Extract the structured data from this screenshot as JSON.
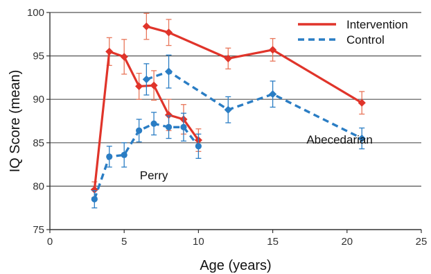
{
  "chart_data": {
    "type": "line",
    "xlabel": "Age (years)",
    "ylabel": "IQ Score (mean)",
    "xlim": [
      0,
      25
    ],
    "ylim": [
      75,
      100
    ],
    "x_ticks": [
      "0",
      "5",
      "10",
      "15",
      "20",
      "25"
    ],
    "y_ticks": [
      "75",
      "80",
      "85",
      "90",
      "95",
      "100"
    ],
    "grid": "horizontal",
    "legend": {
      "placement": "top-right",
      "entries": [
        "Intervention",
        "Control"
      ]
    },
    "annotations": [
      {
        "text": "Perry",
        "x": 7,
        "y": 80.8
      },
      {
        "text": "Abecedarian",
        "x": 19.5,
        "y": 84.9
      }
    ],
    "colors": {
      "intervention": "#e0342a",
      "control": "#2a7dc4",
      "error_intervention": "#e8765a",
      "error_control": "#2a7dc4",
      "grid": "#555555"
    },
    "series": [
      {
        "name": "Intervention",
        "study": "Perry",
        "style": "solid",
        "marker": "diamond",
        "x": [
          3,
          4,
          5,
          6,
          7,
          8,
          9,
          10
        ],
        "y": [
          79.6,
          95.5,
          94.9,
          91.5,
          91.6,
          88.2,
          87.7,
          85.3
        ],
        "err": [
          0.9,
          1.6,
          2.0,
          1.5,
          1.7,
          1.8,
          1.7,
          1.3
        ]
      },
      {
        "name": "Control",
        "study": "Perry",
        "style": "dashed",
        "marker": "circle",
        "x": [
          3,
          4,
          5,
          6,
          7,
          8,
          9,
          10
        ],
        "y": [
          78.5,
          83.4,
          83.6,
          86.4,
          87.2,
          86.8,
          86.8,
          84.6
        ],
        "err": [
          1.0,
          1.2,
          1.4,
          1.3,
          1.3,
          1.3,
          1.6,
          1.4
        ]
      },
      {
        "name": "Intervention",
        "study": "Abecedarian",
        "style": "solid",
        "marker": "diamond",
        "x": [
          6.5,
          8,
          12,
          15,
          21
        ],
        "y": [
          98.4,
          97.7,
          94.7,
          95.7,
          89.6
        ],
        "err": [
          1.5,
          1.5,
          1.2,
          1.3,
          1.3
        ]
      },
      {
        "name": "Control",
        "study": "Abecedarian",
        "style": "dashed",
        "marker": "diamond",
        "x": [
          6.5,
          8,
          12,
          15,
          21
        ],
        "y": [
          92.3,
          93.2,
          88.8,
          90.6,
          85.5
        ],
        "err": [
          1.8,
          1.9,
          1.5,
          1.5,
          1.2
        ]
      }
    ]
  }
}
